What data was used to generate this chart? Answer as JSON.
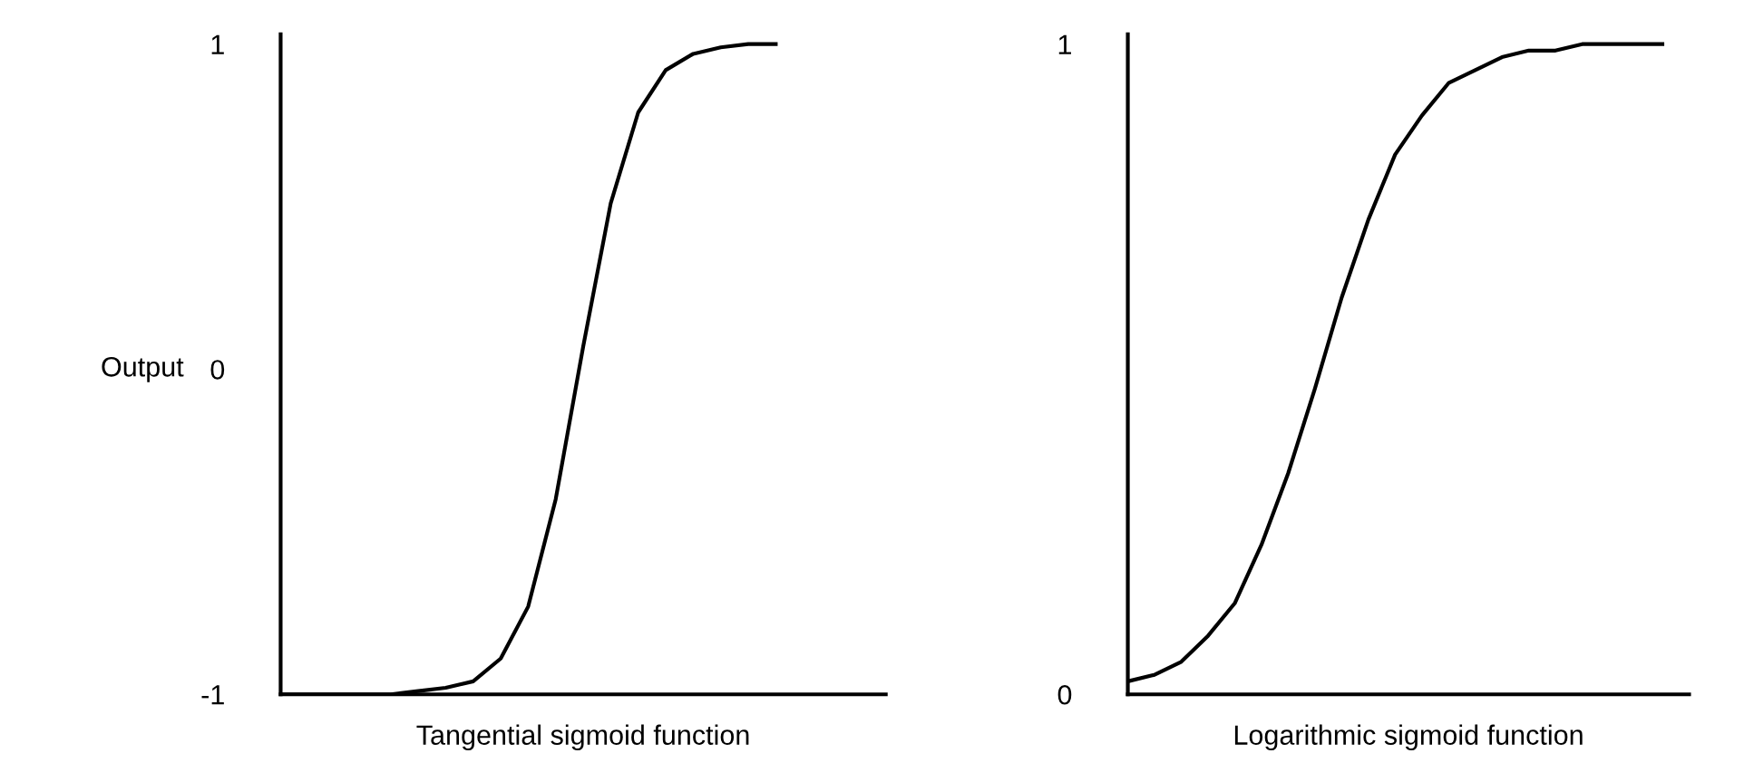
{
  "chart_data": [
    {
      "type": "line",
      "xlabel": "Tangential sigmoid function",
      "ylabel": "Output",
      "color": "#000000",
      "tick_labels": "y",
      "ylim": [
        -1,
        1.03
      ],
      "yticks": [
        -1,
        0,
        1
      ],
      "marker": "none",
      "categories": [
        null,
        null,
        null,
        null,
        null,
        null,
        null,
        null,
        null,
        null,
        null,
        null,
        null,
        null,
        null,
        null,
        null,
        null,
        null,
        null,
        null,
        null,
        null
      ],
      "values": [
        -1,
        -1,
        -1,
        -1,
        -1,
        -0.99,
        -0.98,
        -0.96,
        -0.89,
        -0.73,
        -0.4,
        0.07,
        0.51,
        0.79,
        0.92,
        0.97,
        0.99,
        1,
        1,
        null,
        null,
        null,
        null
      ]
    },
    {
      "type": "line",
      "xlabel": "Logarithmic sigmoid function",
      "color": "#000000",
      "tick_labels": "y",
      "ylim": [
        0,
        1.015
      ],
      "yticks": [
        0,
        1
      ],
      "marker": "none",
      "categories": [
        null,
        null,
        null,
        null,
        null,
        null,
        null,
        null,
        null,
        null,
        null,
        null,
        null,
        null,
        null,
        null,
        null,
        null,
        null,
        null,
        null,
        null
      ],
      "values": [
        0.02,
        0.03,
        0.05,
        0.09,
        0.14,
        0.23,
        0.34,
        0.47,
        0.61,
        0.73,
        0.83,
        0.89,
        0.94,
        0.96,
        0.98,
        0.99,
        0.99,
        1,
        1,
        1,
        1,
        null
      ]
    }
  ]
}
